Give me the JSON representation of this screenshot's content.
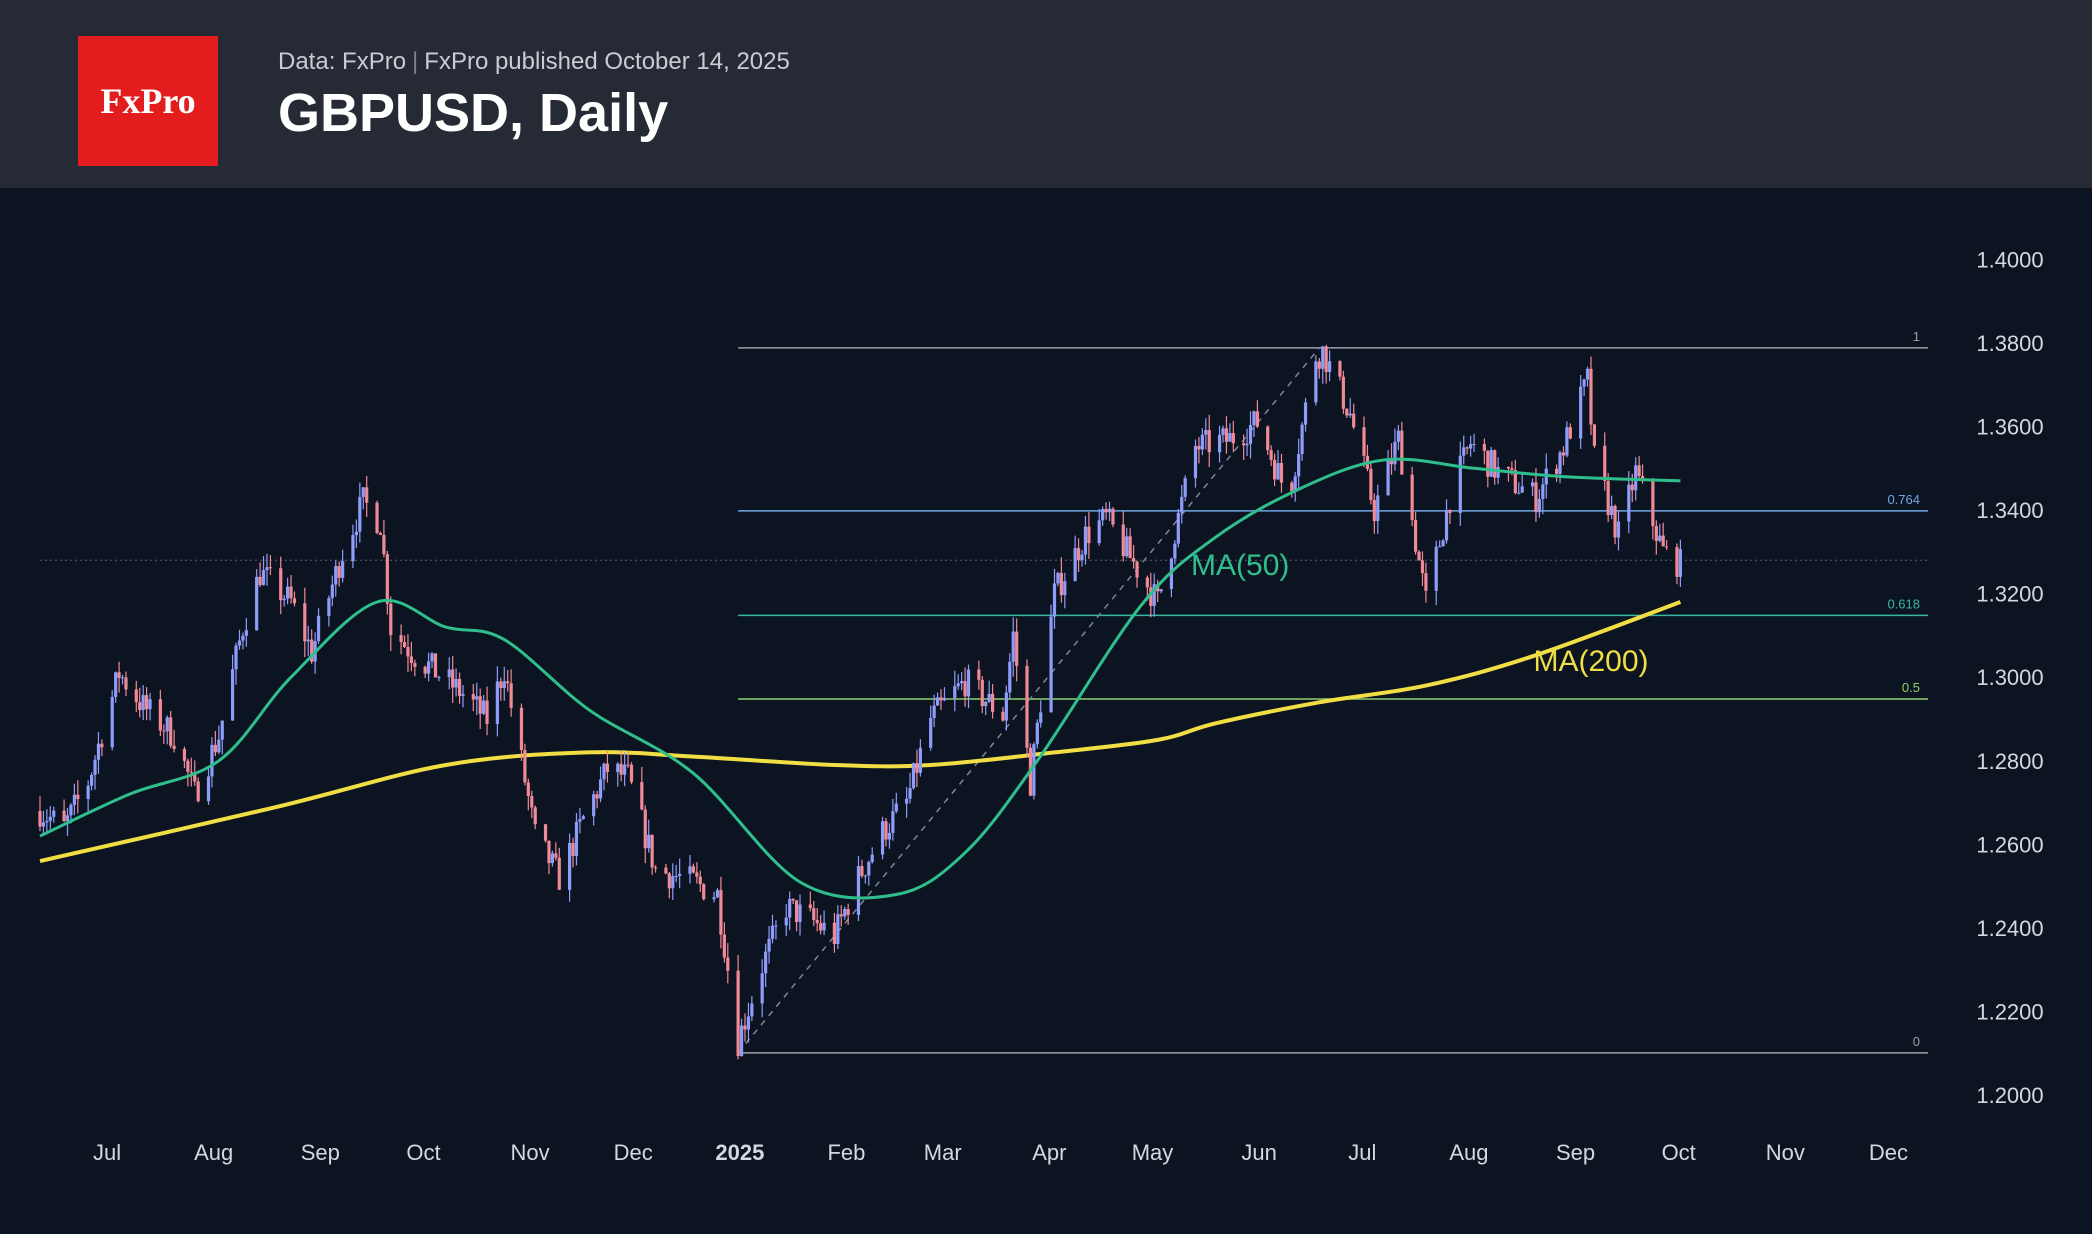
{
  "header": {
    "logo_text": "FxPro",
    "data_source": "Data: FxPro",
    "published": "FxPro published October 14, 2025",
    "title": "GBPUSD, Daily"
  },
  "colors": {
    "background": "#0d1421",
    "header_background": "#252a35",
    "logo_red": "#e31d1d",
    "candle_up": "#8e9dfa",
    "candle_down": "#f08a96",
    "ma50": "#2fbf8d",
    "ma200": "#f0de44",
    "fib_top": "#9aa0aa",
    "fib_0764": "#6ea8e8",
    "fib_0618": "#38b8a3",
    "fib_05": "#8ecf6e",
    "fib_0": "#9aa0aa",
    "axis_text": "#d5d8de"
  },
  "chart_data": {
    "type": "line",
    "title": "GBPUSD, Daily",
    "ylim": [
      1.195,
      1.4075
    ],
    "x_domain": [
      "2024-06-24",
      "2025-12-25"
    ],
    "yticks": [
      "1.4000",
      "1.3800",
      "1.3600",
      "1.3400",
      "1.3200",
      "1.3000",
      "1.2800",
      "1.2600",
      "1.2400",
      "1.2200",
      "1.2000"
    ],
    "x_ticks": [
      {
        "label": "Jul",
        "date": "2024-07-01"
      },
      {
        "label": "Aug",
        "date": "2024-08-01"
      },
      {
        "label": "Sep",
        "date": "2024-09-01"
      },
      {
        "label": "Oct",
        "date": "2024-10-01"
      },
      {
        "label": "Nov",
        "date": "2024-11-01"
      },
      {
        "label": "Dec",
        "date": "2024-12-01"
      },
      {
        "label": "2025",
        "date": "2025-01-01",
        "bold": true
      },
      {
        "label": "Feb",
        "date": "2025-02-01"
      },
      {
        "label": "Mar",
        "date": "2025-03-01"
      },
      {
        "label": "Apr",
        "date": "2025-04-01"
      },
      {
        "label": "May",
        "date": "2025-05-01"
      },
      {
        "label": "Jun",
        "date": "2025-06-01"
      },
      {
        "label": "Jul",
        "date": "2025-07-01"
      },
      {
        "label": "Aug",
        "date": "2025-08-01"
      },
      {
        "label": "Sep",
        "date": "2025-09-01"
      },
      {
        "label": "Oct",
        "date": "2025-10-01"
      },
      {
        "label": "Nov",
        "date": "2025-11-01"
      },
      {
        "label": "Dec",
        "date": "2025-12-01"
      }
    ],
    "price_path": [
      [
        "2024-06-24",
        1.268
      ],
      [
        "2024-07-01",
        1.264
      ],
      [
        "2024-07-08",
        1.275
      ],
      [
        "2024-07-17",
        1.301
      ],
      [
        "2024-07-24",
        1.293
      ],
      [
        "2024-08-02",
        1.286
      ],
      [
        "2024-08-08",
        1.272
      ],
      [
        "2024-08-15",
        1.286
      ],
      [
        "2024-08-22",
        1.312
      ],
      [
        "2024-08-27",
        1.325
      ],
      [
        "2024-09-05",
        1.318
      ],
      [
        "2024-09-11",
        1.306
      ],
      [
        "2024-09-20",
        1.33
      ],
      [
        "2024-09-26",
        1.342
      ],
      [
        "2024-10-01",
        1.337
      ],
      [
        "2024-10-04",
        1.312
      ],
      [
        "2024-10-10",
        1.306
      ],
      [
        "2024-10-25",
        1.296
      ],
      [
        "2024-11-01",
        1.29
      ],
      [
        "2024-11-06",
        1.302
      ],
      [
        "2024-11-15",
        1.262
      ],
      [
        "2024-11-22",
        1.252
      ],
      [
        "2024-11-29",
        1.266
      ],
      [
        "2024-12-06",
        1.278
      ],
      [
        "2024-12-12",
        1.276
      ],
      [
        "2024-12-20",
        1.254
      ],
      [
        "2024-12-31",
        1.251
      ],
      [
        "2025-01-07",
        1.248
      ],
      [
        "2025-01-13",
        1.213
      ],
      [
        "2025-01-20",
        1.231
      ],
      [
        "2025-01-27",
        1.245
      ],
      [
        "2025-02-03",
        1.242
      ],
      [
        "2025-02-10",
        1.238
      ],
      [
        "2025-02-17",
        1.252
      ],
      [
        "2025-02-24",
        1.263
      ],
      [
        "2025-03-03",
        1.27
      ],
      [
        "2025-03-10",
        1.29
      ],
      [
        "2025-03-20",
        1.299
      ],
      [
        "2025-03-31",
        1.291
      ],
      [
        "2025-04-03",
        1.31
      ],
      [
        "2025-04-08",
        1.275
      ],
      [
        "2025-04-15",
        1.32
      ],
      [
        "2025-04-24",
        1.334
      ],
      [
        "2025-04-30",
        1.338
      ],
      [
        "2025-05-09",
        1.326
      ],
      [
        "2025-05-15",
        1.318
      ],
      [
        "2025-05-26",
        1.355
      ],
      [
        "2025-06-05",
        1.357
      ],
      [
        "2025-06-13",
        1.361
      ],
      [
        "2025-06-22",
        1.343
      ],
      [
        "2025-06-30",
        1.377
      ],
      [
        "2025-07-02",
        1.378
      ],
      [
        "2025-07-10",
        1.363
      ],
      [
        "2025-07-17",
        1.34
      ],
      [
        "2025-07-24",
        1.357
      ],
      [
        "2025-08-01",
        1.318
      ],
      [
        "2025-08-08",
        1.343
      ],
      [
        "2025-08-14",
        1.356
      ],
      [
        "2025-08-22",
        1.349
      ],
      [
        "2025-09-02",
        1.343
      ],
      [
        "2025-09-10",
        1.355
      ],
      [
        "2025-09-17",
        1.371
      ],
      [
        "2025-09-19",
        1.352
      ],
      [
        "2025-09-26",
        1.334
      ],
      [
        "2025-10-01",
        1.349
      ],
      [
        "2025-10-09",
        1.33
      ],
      [
        "2025-10-14",
        1.327
      ]
    ],
    "series": [
      {
        "name": "MA(50)",
        "points": [
          [
            "2024-06-24",
            1.262
          ],
          [
            "2024-07-20",
            1.272
          ],
          [
            "2024-08-15",
            1.28
          ],
          [
            "2024-09-05",
            1.3
          ],
          [
            "2024-09-30",
            1.318
          ],
          [
            "2024-10-20",
            1.312
          ],
          [
            "2024-11-06",
            1.309
          ],
          [
            "2024-12-01",
            1.292
          ],
          [
            "2024-12-31",
            1.277
          ],
          [
            "2025-01-31",
            1.251
          ],
          [
            "2025-02-28",
            1.248
          ],
          [
            "2025-03-20",
            1.258
          ],
          [
            "2025-04-10",
            1.28
          ],
          [
            "2025-05-10",
            1.317
          ],
          [
            "2025-05-31",
            1.333
          ],
          [
            "2025-06-25",
            1.345
          ],
          [
            "2025-07-20",
            1.352
          ],
          [
            "2025-08-15",
            1.35
          ],
          [
            "2025-09-10",
            1.348
          ],
          [
            "2025-10-14",
            1.347
          ]
        ]
      },
      {
        "name": "MA(200)",
        "points": [
          [
            "2024-06-24",
            1.256
          ],
          [
            "2024-09-01",
            1.269
          ],
          [
            "2024-10-20",
            1.279
          ],
          [
            "2024-11-30",
            1.282
          ],
          [
            "2024-12-31",
            1.281
          ],
          [
            "2025-02-10",
            1.279
          ],
          [
            "2025-03-10",
            1.279
          ],
          [
            "2025-04-15",
            1.282
          ],
          [
            "2025-05-15",
            1.285
          ],
          [
            "2025-06-01",
            1.289
          ],
          [
            "2025-07-01",
            1.294
          ],
          [
            "2025-08-01",
            1.298
          ],
          [
            "2025-09-01",
            1.305
          ],
          [
            "2025-10-14",
            1.318
          ]
        ]
      }
    ],
    "series_labels": [
      {
        "name": "MA(50)",
        "date": "2025-06-08",
        "price": 1.3245
      },
      {
        "name": "MA(200)",
        "date": "2025-09-18",
        "price": 1.3015
      }
    ],
    "fibonacci": {
      "start_date": "2025-01-13",
      "end_date": "2025-12-25",
      "levels": [
        {
          "label": "1",
          "value": 1.3788
        },
        {
          "label": "0.764",
          "value": 1.3398
        },
        {
          "label": "0.618",
          "value": 1.3148
        },
        {
          "label": "0.5",
          "value": 1.2948
        },
        {
          "label": "0",
          "value": 1.2101
        }
      ]
    },
    "trendline": {
      "from": [
        "2025-01-13",
        1.2101
      ],
      "to": [
        "2025-07-01",
        1.3788
      ]
    },
    "last_price_line": 1.328,
    "last_price_line_style": "dotted"
  }
}
